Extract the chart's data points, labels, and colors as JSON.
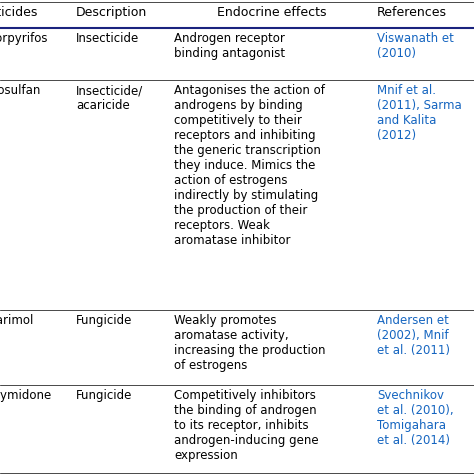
{
  "headers": [
    "Pesticides",
    "Description",
    "Endocrine effects",
    "References"
  ],
  "rows": [
    {
      "pesticide": "Chlorpyrifos",
      "description": "Insecticide",
      "endocrine": "Androgen receptor\nbinding antagonist",
      "references": "Viswanath et\n(2010)"
    },
    {
      "pesticide": "Endosulfan",
      "description": "Insecticide/\nacaricide",
      "endocrine": "Antagonises the action of\nandrogens by binding\ncompetitively to their\nreceptors and inhibiting\nthe generic transcription\nthey induce. Mimics the\naction of estrogens\nindirectly by stimulating\nthe production of their\nreceptors. Weak\naromatase inhibitor",
      "references": "Mnif et al.\n(2011), Sarma\nand Kalita\n(2012)"
    },
    {
      "pesticide": "Fenarimol",
      "description": "Fungicide",
      "endocrine": "Weakly promotes\naromatase activity,\nincreasing the production\nof estrogens",
      "references": "Andersen et\n(2002), Mnif\net al. (2011)"
    },
    {
      "pesticide": "Procymidone",
      "description": "Fungicide",
      "endocrine": "Competitively inhibitors\nthe binding of androgen\nto its receptor, inhibits\nandrogen-inducing gene\nexpression",
      "references": "Svechnikov\net al. (2010),\nTomigahara\net al. (2014)"
    }
  ],
  "header_color": "#000000",
  "ref_color": "#1565c0",
  "text_color": "#000000",
  "bg_color": "#ffffff",
  "fontsize": 8.5,
  "header_fontsize": 9.0,
  "line_color": "#000000",
  "header_line_color": "#1a237e"
}
